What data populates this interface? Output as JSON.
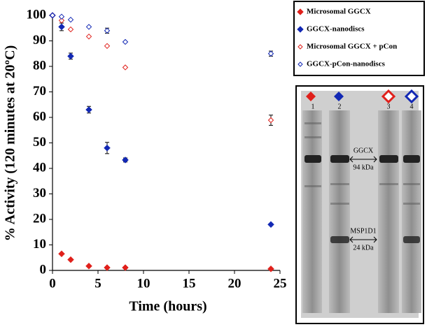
{
  "chart_data": {
    "type": "scatter",
    "xlabel": "Time (hours)",
    "ylabel": "% Activity (120 minutes at 20ºC)",
    "x": [
      0,
      1,
      2,
      4,
      6,
      8,
      24
    ],
    "xlim": [
      0,
      25
    ],
    "xticks": [
      0,
      5,
      10,
      15,
      20,
      25
    ],
    "ylim": [
      0,
      100
    ],
    "yticks": [
      0,
      10,
      20,
      30,
      40,
      50,
      60,
      70,
      80,
      90,
      100
    ],
    "grid": false,
    "legend": "outside-right",
    "series": [
      {
        "name": "Microsomal GGCX",
        "color": "#e0201b",
        "filled": true,
        "values": [
          100,
          6.5,
          4.2,
          1.7,
          1.1,
          1.1,
          0.6
        ],
        "errors": [
          null,
          null,
          null,
          null,
          null,
          null,
          null
        ]
      },
      {
        "name": "GGCX-nanodiscs",
        "color": "#1228b4",
        "filled": true,
        "values": [
          100,
          95.5,
          84,
          63,
          48,
          43.3,
          18
        ],
        "errors": [
          null,
          1.5,
          1.2,
          1.3,
          2.2,
          0.8,
          null
        ]
      },
      {
        "name": "Microsomal GGCX + pCon",
        "color": "#e0201b",
        "filled": false,
        "values": [
          100,
          98,
          94.5,
          91.7,
          88,
          79.6,
          58.9
        ],
        "errors": [
          null,
          null,
          null,
          null,
          null,
          null,
          2
        ]
      },
      {
        "name": "GGCX-pCon-nanodiscs",
        "color": "#1228b4",
        "filled": false,
        "values": [
          100,
          99.5,
          98.3,
          95.5,
          94,
          89.6,
          85
        ],
        "errors": [
          null,
          null,
          null,
          null,
          1,
          null,
          1
        ]
      }
    ]
  },
  "gel": {
    "lanes": [
      "1",
      "2",
      "3",
      "4"
    ],
    "bands": [
      {
        "label": "GGCX",
        "size": "94 kDa"
      },
      {
        "label": "MSP1D1",
        "size": "24 kDa"
      }
    ]
  }
}
